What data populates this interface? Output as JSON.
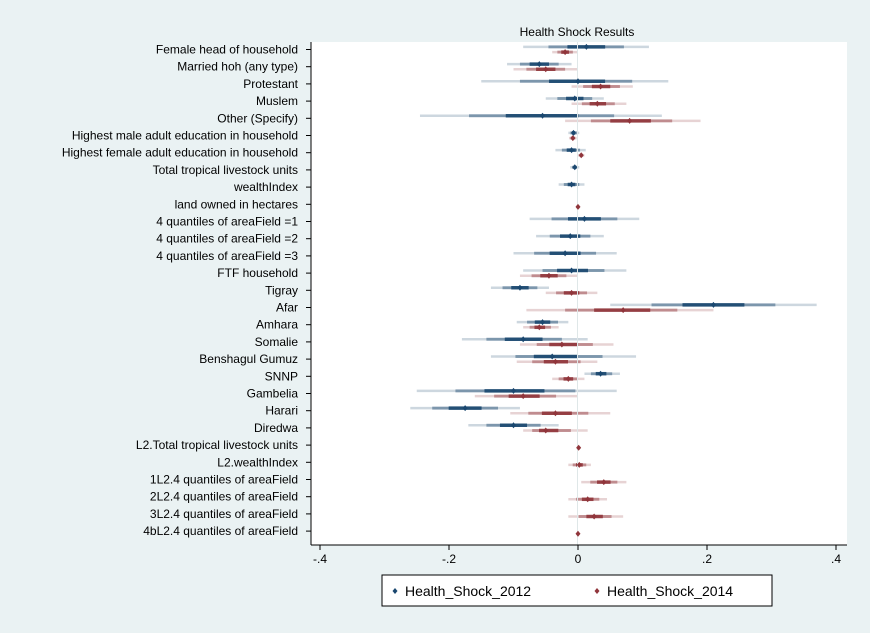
{
  "chart_data": {
    "type": "coefficient-plot",
    "title": "Health Shock Results",
    "xlabel": "",
    "ylabel": "",
    "xlim": [
      -0.4,
      0.4
    ],
    "xticks": [
      {
        "value": -0.4,
        "label": "-.4"
      },
      {
        "value": -0.2,
        "label": "-.2"
      },
      {
        "value": 0,
        "label": "0"
      },
      {
        "value": 0.2,
        "label": ".2"
      },
      {
        "value": 0.4,
        "label": ".4"
      }
    ],
    "grid": false,
    "reference_line": 0,
    "legend_position": "bottom",
    "categories": [
      "Female head of household",
      "Married hoh (any type)",
      "Protestant",
      "Muslem",
      "Other (Specify)",
      "Highest male adult education in household",
      "Highest female adult education in household",
      "Total tropical livestock units",
      "wealthIndex",
      "land owned in hectares",
      "4 quantiles of areaField =1",
      "4 quantiles of areaField =2",
      "4 quantiles of areaField =3",
      "FTF household",
      "Tigray",
      "Afar",
      "Amhara",
      "Somalie",
      "Benshagul Gumuz",
      "SNNP",
      "Gambelia",
      "Harari",
      "Diredwa",
      "L2.Total tropical livestock units",
      "L2.wealthIndex",
      "1L2.4 quantiles of areaField",
      "2L2.4 quantiles of areaField",
      "3L2.4 quantiles of areaField",
      "4bL2.4 quantiles of areaField"
    ],
    "series": [
      {
        "name": "Health_Shock_2012",
        "color": "#1a476f",
        "estimates": [
          0.013,
          -0.06,
          0,
          -0.005,
          -0.055,
          -0.007,
          -0.01,
          -0.005,
          -0.01,
          null,
          0.01,
          -0.012,
          -0.02,
          -0.01,
          -0.09,
          0.21,
          -0.055,
          -0.085,
          -0.04,
          0.035,
          -0.1,
          -0.175,
          -0.1,
          null,
          null,
          null,
          null,
          null,
          null
        ],
        "ci_low": [
          -0.085,
          -0.11,
          -0.15,
          -0.05,
          -0.245,
          -0.015,
          -0.035,
          -0.012,
          -0.03,
          null,
          -0.075,
          -0.065,
          -0.1,
          -0.085,
          -0.135,
          0.05,
          -0.095,
          -0.18,
          -0.135,
          0.01,
          -0.25,
          -0.26,
          -0.17,
          null,
          null,
          null,
          null,
          null,
          null
        ],
        "ci_high": [
          0.11,
          -0.01,
          0.14,
          0.04,
          0.13,
          0.002,
          0.012,
          0.002,
          0.01,
          null,
          0.095,
          0.04,
          0.06,
          0.075,
          -0.045,
          0.37,
          -0.015,
          0.015,
          0.09,
          0.065,
          0.06,
          -0.09,
          -0.03,
          null,
          null,
          null,
          null,
          null,
          null
        ]
      },
      {
        "name": "Health_Shock_2014",
        "color": "#90353b",
        "estimates": [
          -0.02,
          -0.05,
          0.035,
          0.03,
          0.08,
          -0.008,
          0.005,
          null,
          null,
          0,
          null,
          null,
          null,
          -0.045,
          -0.01,
          0.07,
          -0.06,
          -0.025,
          -0.035,
          -0.015,
          -0.085,
          -0.035,
          -0.05,
          0.001,
          0.002,
          0.04,
          0.015,
          0.025,
          0
        ],
        "ci_low": [
          -0.04,
          -0.1,
          -0.01,
          -0.01,
          -0.02,
          -0.014,
          0,
          null,
          null,
          -0.003,
          null,
          null,
          null,
          -0.09,
          -0.05,
          -0.08,
          -0.085,
          -0.09,
          -0.095,
          -0.04,
          -0.16,
          -0.105,
          -0.085,
          -0.002,
          -0.015,
          0.005,
          -0.015,
          -0.015,
          -0.002
        ],
        "ci_high": [
          0,
          0,
          0.085,
          0.075,
          0.19,
          -0.002,
          0.01,
          null,
          null,
          0.003,
          null,
          null,
          null,
          0,
          0.03,
          0.21,
          -0.03,
          0.055,
          0.03,
          0.01,
          0,
          0.05,
          0.015,
          0.004,
          0.02,
          0.075,
          0.045,
          0.07,
          0.002
        ]
      }
    ]
  }
}
